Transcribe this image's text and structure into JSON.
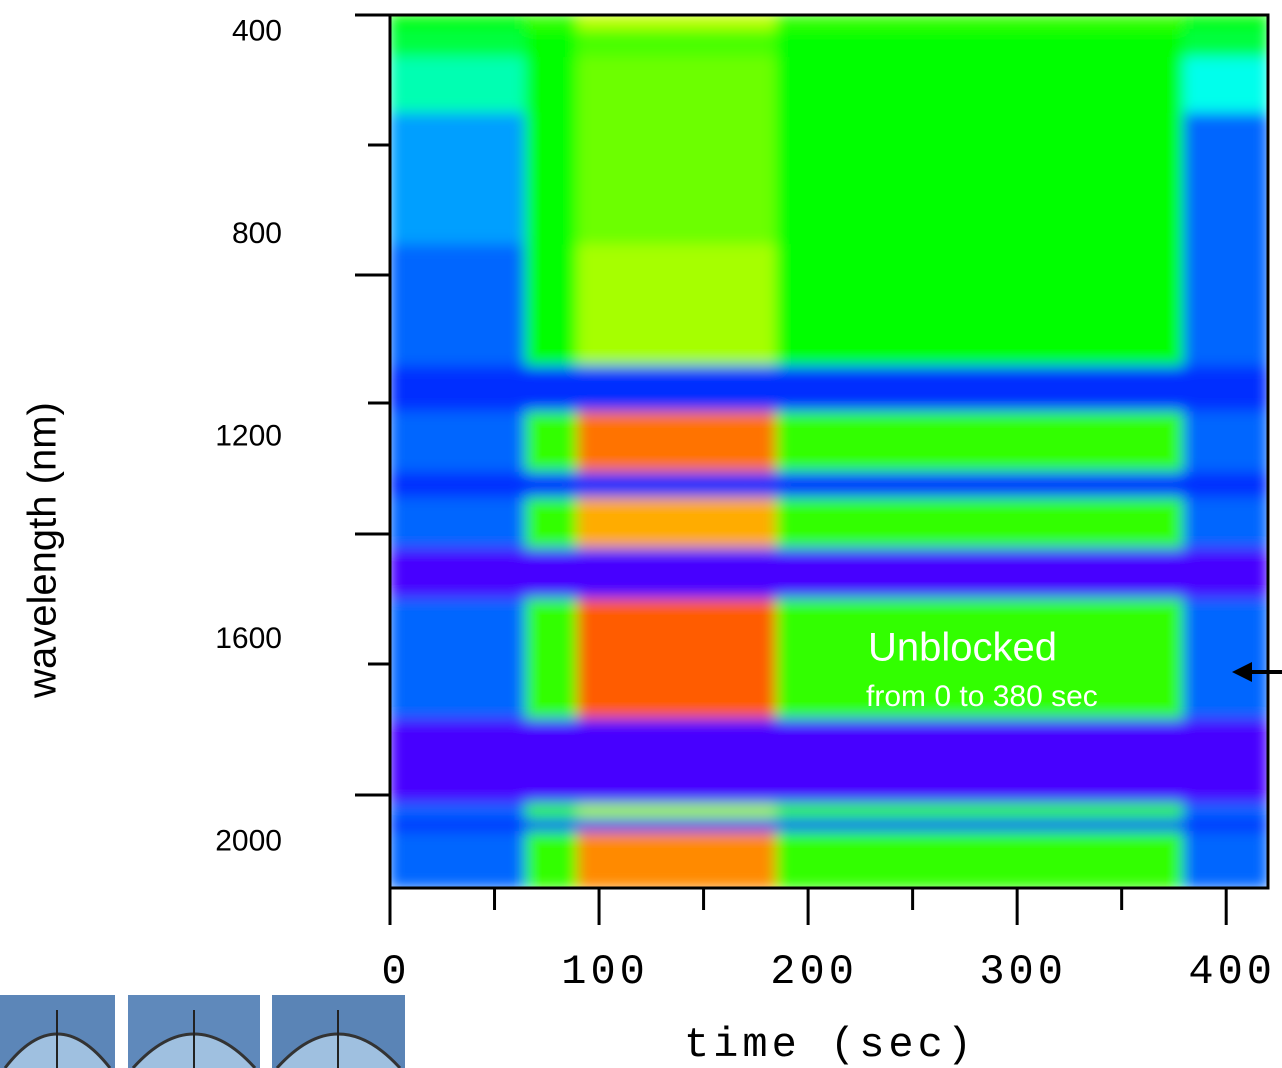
{
  "chart_data": {
    "type": "heatmap",
    "x_label": "time (sec)",
    "y_label": "wavelength (nm)",
    "xlim": [
      0,
      420
    ],
    "ylim": [
      365,
      2090
    ],
    "xticks": [
      0,
      100,
      200,
      300,
      400
    ],
    "xminorticks": [
      50,
      150,
      250,
      350
    ],
    "yticks": [
      400,
      800,
      1200,
      1600,
      2000
    ],
    "x_edges": [
      0,
      65,
      90,
      170,
      185,
      380,
      420
    ],
    "y_edges": [
      365,
      395,
      450,
      560,
      820,
      1060,
      1150,
      1270,
      1320,
      1420,
      1520,
      1757,
      1925,
      1955,
      1980,
      2090
    ],
    "values": [
      [
        0.55,
        0.6,
        0.72,
        0.72,
        0.6,
        0.55
      ],
      [
        0.5,
        0.55,
        0.62,
        0.62,
        0.55,
        0.5
      ],
      [
        0.4,
        0.55,
        0.65,
        0.65,
        0.55,
        0.35
      ],
      [
        0.25,
        0.55,
        0.65,
        0.65,
        0.55,
        0.2
      ],
      [
        0.2,
        0.55,
        0.7,
        0.7,
        0.55,
        0.2
      ],
      [
        0.15,
        0.15,
        0.15,
        0.15,
        0.15,
        0.15
      ],
      [
        0.2,
        0.6,
        0.9,
        0.9,
        0.6,
        0.2
      ],
      [
        0.15,
        0.15,
        0.15,
        0.15,
        0.15,
        0.15
      ],
      [
        0.2,
        0.6,
        0.85,
        0.85,
        0.6,
        0.2
      ],
      [
        0.05,
        0.05,
        0.05,
        0.05,
        0.05,
        0.05
      ],
      [
        0.2,
        0.6,
        0.92,
        0.92,
        0.6,
        0.2
      ],
      [
        0.05,
        0.05,
        0.05,
        0.05,
        0.05,
        0.05
      ],
      [
        0.2,
        0.6,
        0.7,
        0.7,
        0.6,
        0.2
      ],
      [
        0.15,
        0.15,
        0.15,
        0.15,
        0.15,
        0.15
      ],
      [
        0.2,
        0.6,
        0.88,
        0.88,
        0.6,
        0.2
      ]
    ],
    "annotations": [
      "Unblocked",
      "from 0 to 380 sec"
    ]
  }
}
